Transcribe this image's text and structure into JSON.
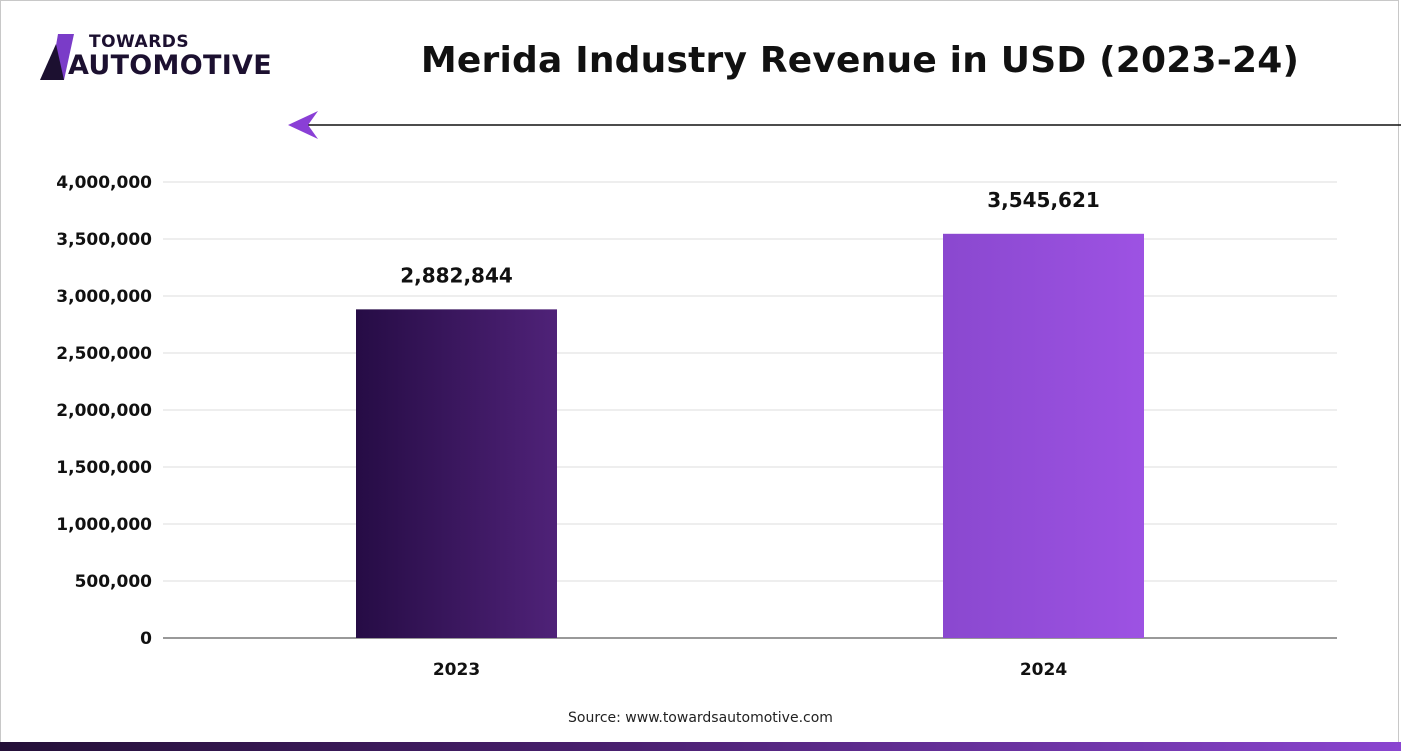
{
  "brand": {
    "line1": "TOWARDS",
    "line2": "AUTOMOTIVE"
  },
  "title": "Merida Industry Revenue in USD (2023-24)",
  "source": "Source: www.towardsautomotive.com",
  "colors": {
    "accent": "#8a3fd6",
    "dark": "#241038"
  },
  "chart_data": {
    "type": "bar",
    "categories": [
      "2023",
      "2024"
    ],
    "values": [
      2882844,
      3545621
    ],
    "value_labels": [
      "2,882,844",
      "3,545,621"
    ],
    "ylim": [
      0,
      4000000
    ],
    "yticks": [
      0,
      500000,
      1000000,
      1500000,
      2000000,
      2500000,
      3000000,
      3500000,
      4000000
    ],
    "ytick_labels": [
      "0",
      "500,000",
      "1,000,000",
      "1,500,000",
      "2,000,000",
      "2,500,000",
      "3,000,000",
      "3,500,000",
      "4,000,000"
    ],
    "bar_gradients": [
      [
        "#260c45",
        "#4f2278"
      ],
      [
        "#8a48cf",
        "#9d52e3"
      ]
    ],
    "grid": true,
    "legend": "none"
  }
}
